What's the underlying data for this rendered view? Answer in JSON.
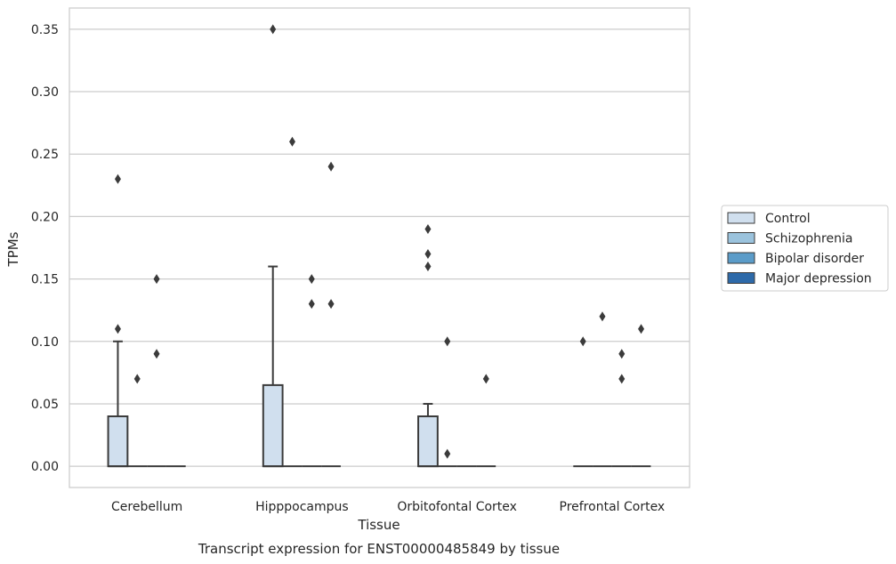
{
  "chart_data": {
    "type": "box",
    "title": "",
    "caption": "Transcript expression for ENST00000485849 by tissue",
    "xlabel": "Tissue",
    "ylabel": "TPMs",
    "ylim": [
      -0.017,
      0.367
    ],
    "yticks": [
      0.0,
      0.05,
      0.1,
      0.15,
      0.2,
      0.25,
      0.3,
      0.35
    ],
    "ytick_labels": [
      "0.00",
      "0.05",
      "0.10",
      "0.15",
      "0.20",
      "0.25",
      "0.30",
      "0.35"
    ],
    "grid": true,
    "legend_position": "right",
    "categories": [
      "Cerebellum",
      "Hipppocampus",
      "Orbitofontal Cortex",
      "Prefrontal Cortex"
    ],
    "series": [
      {
        "name": "Control",
        "color": "#d0dfee",
        "boxes": [
          {
            "q1": 0.0,
            "median": 0.0,
            "q3": 0.04,
            "whisker_low": 0.0,
            "whisker_high": 0.1,
            "outliers": [
              0.11,
              0.23
            ]
          },
          {
            "q1": 0.0,
            "median": 0.0,
            "q3": 0.065,
            "whisker_low": 0.0,
            "whisker_high": 0.16,
            "outliers": [
              0.35
            ]
          },
          {
            "q1": 0.0,
            "median": 0.0,
            "q3": 0.04,
            "whisker_low": 0.0,
            "whisker_high": 0.05,
            "outliers": [
              0.16,
              0.17,
              0.19
            ]
          },
          {
            "q1": 0.0,
            "median": 0.0,
            "q3": 0.0,
            "whisker_low": 0.0,
            "whisker_high": 0.0,
            "outliers": [
              0.1
            ]
          }
        ]
      },
      {
        "name": "Schizophrenia",
        "color": "#9bc3dd",
        "boxes": [
          {
            "q1": 0.0,
            "median": 0.0,
            "q3": 0.0,
            "whisker_low": 0.0,
            "whisker_high": 0.0,
            "outliers": [
              0.07
            ]
          },
          {
            "q1": 0.0,
            "median": 0.0,
            "q3": 0.0,
            "whisker_low": 0.0,
            "whisker_high": 0.0,
            "outliers": [
              0.26
            ]
          },
          {
            "q1": 0.0,
            "median": 0.0,
            "q3": 0.0,
            "whisker_low": 0.0,
            "whisker_high": 0.0,
            "outliers": [
              0.01,
              0.1
            ]
          },
          {
            "q1": 0.0,
            "median": 0.0,
            "q3": 0.0,
            "whisker_low": 0.0,
            "whisker_high": 0.0,
            "outliers": [
              0.12
            ]
          }
        ]
      },
      {
        "name": "Bipolar disorder",
        "color": "#5b9cc9",
        "boxes": [
          {
            "q1": 0.0,
            "median": 0.0,
            "q3": 0.0,
            "whisker_low": 0.0,
            "whisker_high": 0.0,
            "outliers": [
              0.09,
              0.15
            ]
          },
          {
            "q1": 0.0,
            "median": 0.0,
            "q3": 0.0,
            "whisker_low": 0.0,
            "whisker_high": 0.0,
            "outliers": [
              0.13,
              0.15
            ]
          },
          {
            "q1": 0.0,
            "median": 0.0,
            "q3": 0.0,
            "whisker_low": 0.0,
            "whisker_high": 0.0,
            "outliers": []
          },
          {
            "q1": 0.0,
            "median": 0.0,
            "q3": 0.0,
            "whisker_low": 0.0,
            "whisker_high": 0.0,
            "outliers": [
              0.07,
              0.09
            ]
          }
        ]
      },
      {
        "name": "Major depression",
        "color": "#2e6aa9",
        "boxes": [
          {
            "q1": 0.0,
            "median": 0.0,
            "q3": 0.0,
            "whisker_low": 0.0,
            "whisker_high": 0.0,
            "outliers": []
          },
          {
            "q1": 0.0,
            "median": 0.0,
            "q3": 0.0,
            "whisker_low": 0.0,
            "whisker_high": 0.0,
            "outliers": [
              0.13,
              0.24
            ]
          },
          {
            "q1": 0.0,
            "median": 0.0,
            "q3": 0.0,
            "whisker_low": 0.0,
            "whisker_high": 0.0,
            "outliers": [
              0.07
            ]
          },
          {
            "q1": 0.0,
            "median": 0.0,
            "q3": 0.0,
            "whisker_low": 0.0,
            "whisker_high": 0.0,
            "outliers": [
              0.11
            ]
          }
        ]
      }
    ]
  }
}
